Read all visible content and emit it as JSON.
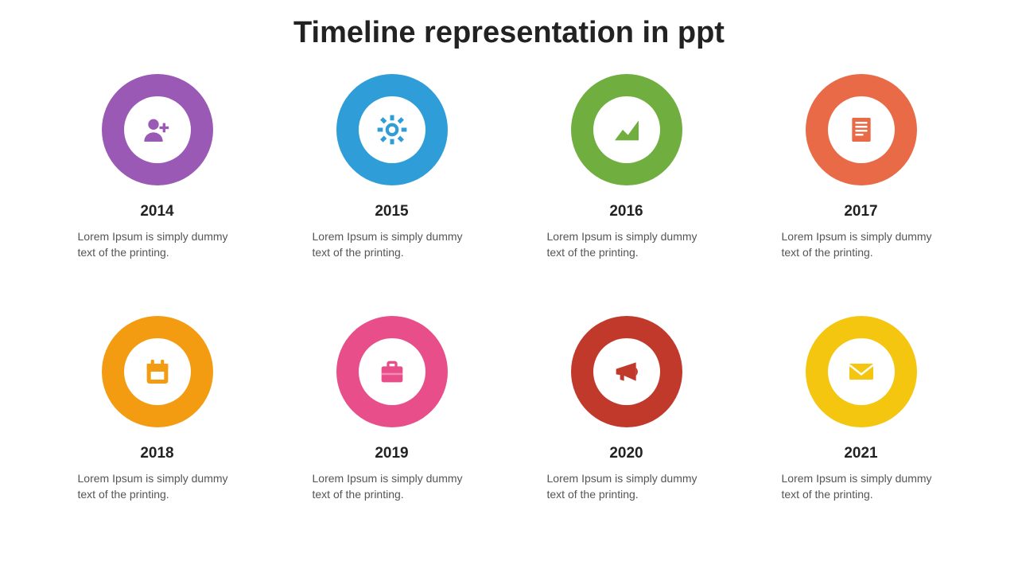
{
  "title": "Timeline representation in ppt",
  "background_color": "#ffffff",
  "title_color": "#222222",
  "title_fontsize": 38,
  "year_fontsize": 19,
  "desc_fontsize": 14,
  "desc_color": "#555555",
  "ring_outer_diameter": 140,
  "ring_inner_diameter": 84,
  "grid": {
    "columns": 4,
    "rows": 2,
    "col_gap": 60,
    "row_gap": 20
  },
  "items": [
    {
      "year": "2014",
      "desc": "Lorem Ipsum is simply dummy text of the printing.",
      "color": "#9b59b6",
      "icon": "user-plus"
    },
    {
      "year": "2015",
      "desc": "Lorem Ipsum is simply dummy text of the printing.",
      "color": "#2f9ed8",
      "icon": "gear"
    },
    {
      "year": "2016",
      "desc": "Lorem Ipsum is simply dummy text of the printing.",
      "color": "#6fae3f",
      "icon": "chart"
    },
    {
      "year": "2017",
      "desc": "Lorem Ipsum is simply dummy text of the printing.",
      "color": "#e86a47",
      "icon": "document"
    },
    {
      "year": "2018",
      "desc": "Lorem Ipsum is simply dummy text of the printing.",
      "color": "#f39c12",
      "icon": "calendar"
    },
    {
      "year": "2019",
      "desc": "Lorem Ipsum is simply dummy text of the printing.",
      "color": "#e84f8a",
      "icon": "briefcase"
    },
    {
      "year": "2020",
      "desc": "Lorem Ipsum is simply dummy text of the printing.",
      "color": "#c0392b",
      "icon": "megaphone"
    },
    {
      "year": "2021",
      "desc": "Lorem Ipsum is simply dummy text of the printing.",
      "color": "#f4c60f",
      "icon": "envelope"
    }
  ]
}
